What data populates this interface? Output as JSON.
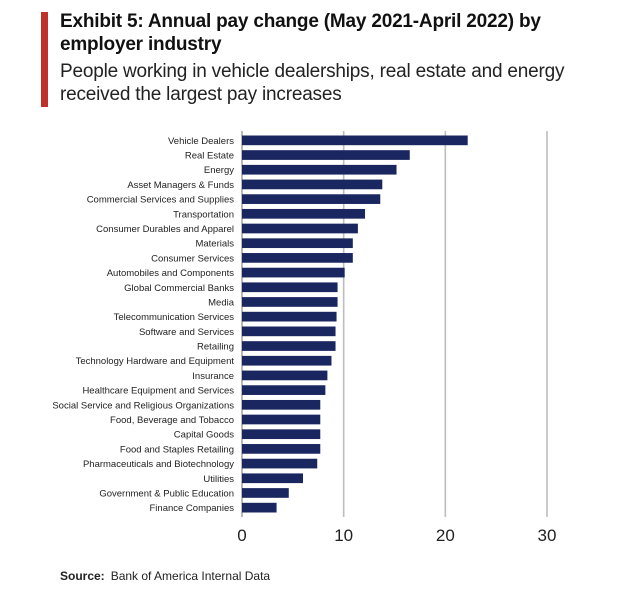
{
  "header": {
    "title": "Exhibit 5: Annual pay change (May 2021-April 2022) by employer industry",
    "subtitle": "People working in vehicle dealerships, real estate and energy received the largest pay increases"
  },
  "footer": {
    "source_label": "Source:",
    "source_text": "Bank of America Internal Data"
  },
  "colors": {
    "bar": "#1a2660",
    "accent": "#c0302b",
    "grid": "#bdbdbd"
  },
  "chart_data": {
    "type": "bar",
    "orientation": "horizontal",
    "categories": [
      "Vehicle Dealers",
      "Real Estate",
      "Energy",
      "Asset Managers & Funds",
      "Commercial Services and Supplies",
      "Transportation",
      "Consumer Durables and Apparel",
      "Materials",
      "Consumer Services",
      "Automobiles and Components",
      "Global Commercial Banks",
      "Media",
      "Telecommunication Services",
      "Software and Services",
      "Retailing",
      "Technology Hardware and Equipment",
      "Insurance",
      "Healthcare Equipment and Services",
      "Social Service and Religious Organizations",
      "Food, Beverage and Tobacco",
      "Capital Goods",
      "Food and Staples Retailing",
      "Pharmaceuticals and Biotechnology",
      "Utilities",
      "Government & Public Education",
      "Finance Companies"
    ],
    "values": [
      22.2,
      16.5,
      15.2,
      13.8,
      13.6,
      12.1,
      11.4,
      10.9,
      10.9,
      10.1,
      9.4,
      9.4,
      9.3,
      9.2,
      9.2,
      8.8,
      8.4,
      8.2,
      7.7,
      7.7,
      7.7,
      7.7,
      7.4,
      6.0,
      4.6,
      3.4
    ],
    "xlim": [
      0,
      30
    ],
    "xticks": [
      "0",
      "10",
      "20",
      "30"
    ],
    "xtick_values": [
      0,
      10,
      20,
      30
    ],
    "grid": true,
    "title": "",
    "xlabel": "",
    "ylabel": ""
  }
}
